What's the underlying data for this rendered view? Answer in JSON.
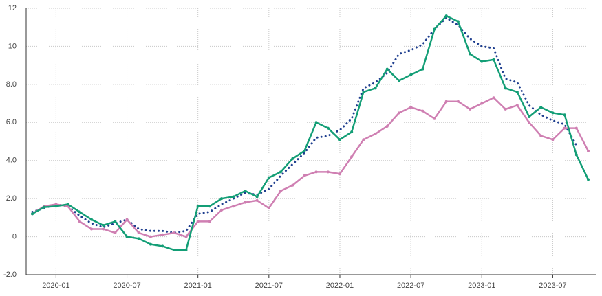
{
  "chart_data": {
    "type": "line",
    "x": [
      "2019-11",
      "2019-12",
      "2020-01",
      "2020-02",
      "2020-03",
      "2020-04",
      "2020-05",
      "2020-06",
      "2020-07",
      "2020-08",
      "2020-09",
      "2020-10",
      "2020-11",
      "2020-12",
      "2021-01",
      "2021-02",
      "2021-03",
      "2021-04",
      "2021-05",
      "2021-06",
      "2021-07",
      "2021-08",
      "2021-09",
      "2021-10",
      "2021-11",
      "2021-12",
      "2022-01",
      "2022-02",
      "2022-03",
      "2022-04",
      "2022-05",
      "2022-06",
      "2022-07",
      "2022-08",
      "2022-09",
      "2022-10",
      "2022-11",
      "2022-12",
      "2023-01",
      "2023-02",
      "2023-03",
      "2023-04",
      "2023-05",
      "2023-06",
      "2023-07",
      "2023-08",
      "2023-09",
      "2023-10"
    ],
    "xticks": [
      "2020-01",
      "2020-07",
      "2021-01",
      "2021-07",
      "2022-01",
      "2022-07",
      "2023-01",
      "2023-07"
    ],
    "ylim": [
      -2,
      12
    ],
    "yticks": [
      {
        "value": -2,
        "label": "-2.0"
      },
      0,
      {
        "value": 2,
        "label": "2.0"
      },
      {
        "value": 4,
        "label": "4.0"
      },
      {
        "value": 6,
        "label": "6.0"
      },
      {
        "value": 8,
        "label": "8.0"
      },
      10,
      12
    ],
    "grid": true,
    "series": [
      {
        "color": "#1f3f8f",
        "style": "dotted",
        "values": [
          1.3,
          1.5,
          1.7,
          1.6,
          1.1,
          0.7,
          0.5,
          0.7,
          0.9,
          0.4,
          0.3,
          0.3,
          0.2,
          0.3,
          1.2,
          1.3,
          1.7,
          2.0,
          2.3,
          2.2,
          2.5,
          3.2,
          3.8,
          4.4,
          5.2,
          5.3,
          5.6,
          6.2,
          7.8,
          8.1,
          8.6,
          9.6,
          9.8,
          10.1,
          10.9,
          11.5,
          11.1,
          10.4,
          10.0,
          9.9,
          8.3,
          8.1,
          6.9,
          6.4,
          6.1,
          5.9,
          4.8,
          null
        ]
      },
      {
        "color": "#cf7fb2",
        "style": "solid",
        "values": [
          1.2,
          1.6,
          1.7,
          1.6,
          0.8,
          0.4,
          0.4,
          0.2,
          0.9,
          0.2,
          0.0,
          0.1,
          0.2,
          0.0,
          0.8,
          0.8,
          1.4,
          1.6,
          1.8,
          1.9,
          1.5,
          2.4,
          2.7,
          3.2,
          3.4,
          3.4,
          3.3,
          4.2,
          5.1,
          5.4,
          5.8,
          6.5,
          6.8,
          6.6,
          6.2,
          7.1,
          7.1,
          6.7,
          7.0,
          7.3,
          6.7,
          6.9,
          6.0,
          5.3,
          5.1,
          5.7,
          5.7,
          4.5
        ]
      },
      {
        "color": "#139e76",
        "style": "solid",
        "values": [
          1.2,
          1.55,
          1.6,
          1.7,
          1.3,
          0.9,
          0.6,
          0.8,
          0.0,
          -0.1,
          -0.4,
          -0.5,
          -0.7,
          -0.7,
          1.6,
          1.6,
          2.0,
          2.1,
          2.4,
          2.1,
          3.1,
          3.4,
          4.1,
          4.5,
          6.0,
          5.7,
          5.1,
          5.5,
          7.6,
          7.8,
          8.8,
          8.2,
          8.5,
          8.8,
          10.9,
          11.6,
          11.3,
          9.6,
          9.2,
          9.3,
          7.8,
          7.6,
          6.3,
          6.8,
          6.5,
          6.4,
          4.3,
          3.0
        ]
      }
    ]
  }
}
